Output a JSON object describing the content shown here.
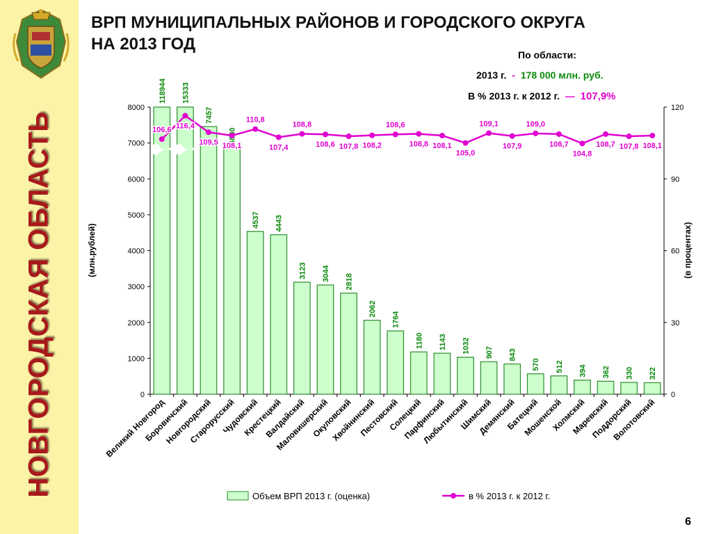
{
  "side_title": "НОВГОРОДСКАЯ ОБЛАСТЬ",
  "title_line1": "ВРП МУНИЦИПАЛЬНЫХ РАЙОНОВ И ГОРОДСКОГО ОКРУГА",
  "title_line2": "НА 2013 ГОД",
  "summary": {
    "header": "По области:",
    "line1_label": "2013 г.",
    "line1_dash": "-",
    "line1_value": "178 000 млн. руб.",
    "line2_label": "В % 2013 г. к  2012 г.",
    "line2_dash": "—",
    "line2_value": "107,9%"
  },
  "page_number": "6",
  "colors": {
    "bar_fill": "#ccffcc",
    "bar_stroke": "#2e8b2e",
    "bar_label": "#0a8a0a",
    "line": "#e000d0",
    "sidebar": "#fbf3a6",
    "title_red": "#a8191c"
  },
  "chart_data": {
    "type": "bar",
    "categories": [
      "Великий Новгород",
      "Боровичский",
      "Новгородский",
      "Старорусский",
      "Чудовский",
      "Крестецкий",
      "Валдайский",
      "Маловишерский",
      "Окуловский",
      "Хвойнинский",
      "Пестовский",
      "Солецкий",
      "Парфинский",
      "Любытинский",
      "Шимский",
      "Демянский",
      "Батецкий",
      "Мошенской",
      "Холмский",
      "Маревский",
      "Поддорский",
      "Волотовский"
    ],
    "bar_labels": [
      "118944",
      "15333",
      "7457",
      "6880",
      "4537",
      "4443",
      "3123",
      "3044",
      "2818",
      "2062",
      "1764",
      "1180",
      "1143",
      "1032",
      "907",
      "843",
      "570",
      "512",
      "394",
      "362",
      "330",
      "322"
    ],
    "series": [
      {
        "name": "Объем ВРП 2013 г. (оценка)",
        "type": "bar",
        "axis": "left",
        "values": [
          118944,
          15333,
          7457,
          6880,
          4537,
          4443,
          3123,
          3044,
          2818,
          2062,
          1764,
          1180,
          1143,
          1032,
          907,
          843,
          570,
          512,
          394,
          362,
          330,
          322
        ]
      },
      {
        "name": "в % 2013 г. к 2012 г.",
        "type": "line",
        "axis": "right",
        "values": [
          106.6,
          116.4,
          109.5,
          108.1,
          110.8,
          107.4,
          108.8,
          108.6,
          107.8,
          108.2,
          108.6,
          108.8,
          108.1,
          105.0,
          109.1,
          107.9,
          109.0,
          108.7,
          104.8,
          108.7,
          107.8,
          108.1
        ],
        "labels": [
          "106,6",
          "116,4",
          "109,5",
          "108,1",
          "110,8",
          "107,4",
          "108,8",
          "108,6",
          "107,8",
          "108,2",
          "108,6",
          "108,8",
          "108,1",
          "105,0",
          "109,1",
          "107,9",
          "109,0",
          "108,7",
          "104,8",
          "108,7",
          "107,8",
          "108,1"
        ]
      }
    ],
    "ylabel": "(млн.рублей)",
    "y2label": "(в процентах)",
    "ylim": [
      0,
      8000
    ],
    "y2lim": [
      0,
      120
    ],
    "yticks": [
      "0",
      "1000",
      "2000",
      "3000",
      "4000",
      "5000",
      "6000",
      "7000",
      "8000"
    ],
    "y2ticks": [
      "0",
      "30",
      "60",
      "90",
      "120"
    ],
    "axis_break": "first two bars exceed 8000 and are shown with a break",
    "legend_position": "bottom"
  }
}
